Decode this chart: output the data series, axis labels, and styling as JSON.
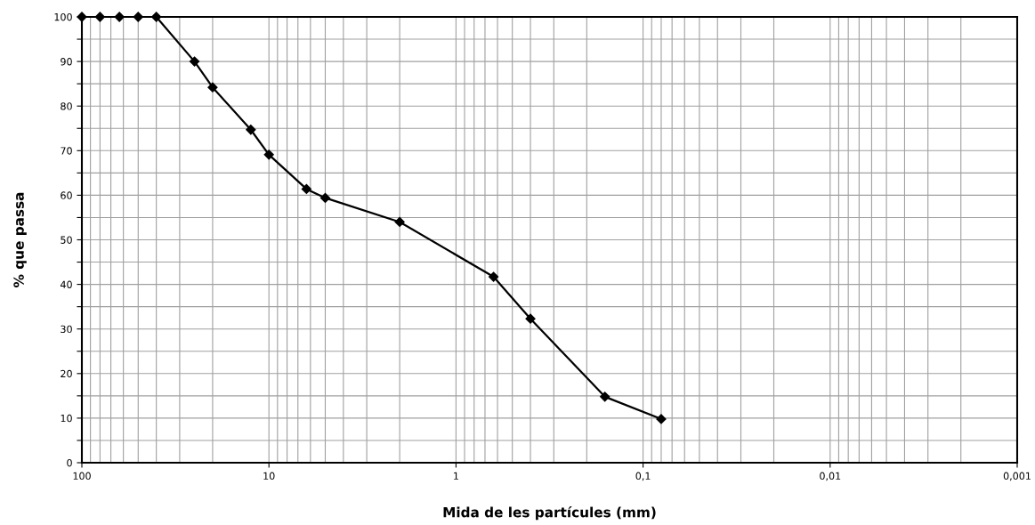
{
  "chart_data": {
    "type": "line",
    "xlabel": "Mida de les partícules (mm)",
    "ylabel": "% que passa",
    "x": [
      100,
      80,
      63,
      50,
      40,
      25,
      20,
      12.5,
      10,
      6.3,
      5,
      2,
      0.63,
      0.4,
      0.16,
      0.08
    ],
    "series": [
      {
        "color": "#000000",
        "values": [
          100,
          100,
          100,
          100,
          100,
          90,
          84.2,
          74.7,
          69.1,
          61.4,
          59.4,
          54.0,
          41.7,
          32.3,
          14.8,
          9.8
        ]
      }
    ],
    "log": "x",
    "xlim": [
      100,
      0.001
    ],
    "xticks": [
      100,
      10,
      1,
      {
        "value": 0.1,
        "label": "0,1"
      },
      {
        "value": 0.01,
        "label": "0,01"
      },
      {
        "value": 0.001,
        "label": "0,001"
      }
    ],
    "ylim": [
      0,
      100
    ],
    "yticks": [
      0,
      {
        "value": 5,
        "label": null
      },
      10,
      {
        "value": 15,
        "label": null
      },
      20,
      {
        "value": 25,
        "label": null
      },
      30,
      {
        "value": 35,
        "label": null
      },
      40,
      {
        "value": 45,
        "label": null
      },
      50,
      {
        "value": 55,
        "label": null
      },
      60,
      {
        "value": 65,
        "label": null
      },
      70,
      {
        "value": 75,
        "label": null
      },
      80,
      {
        "value": 85,
        "label": null
      },
      90,
      {
        "value": 95,
        "label": null
      },
      100
    ],
    "grid": true,
    "marker": "diamond",
    "line_style": "solid"
  }
}
